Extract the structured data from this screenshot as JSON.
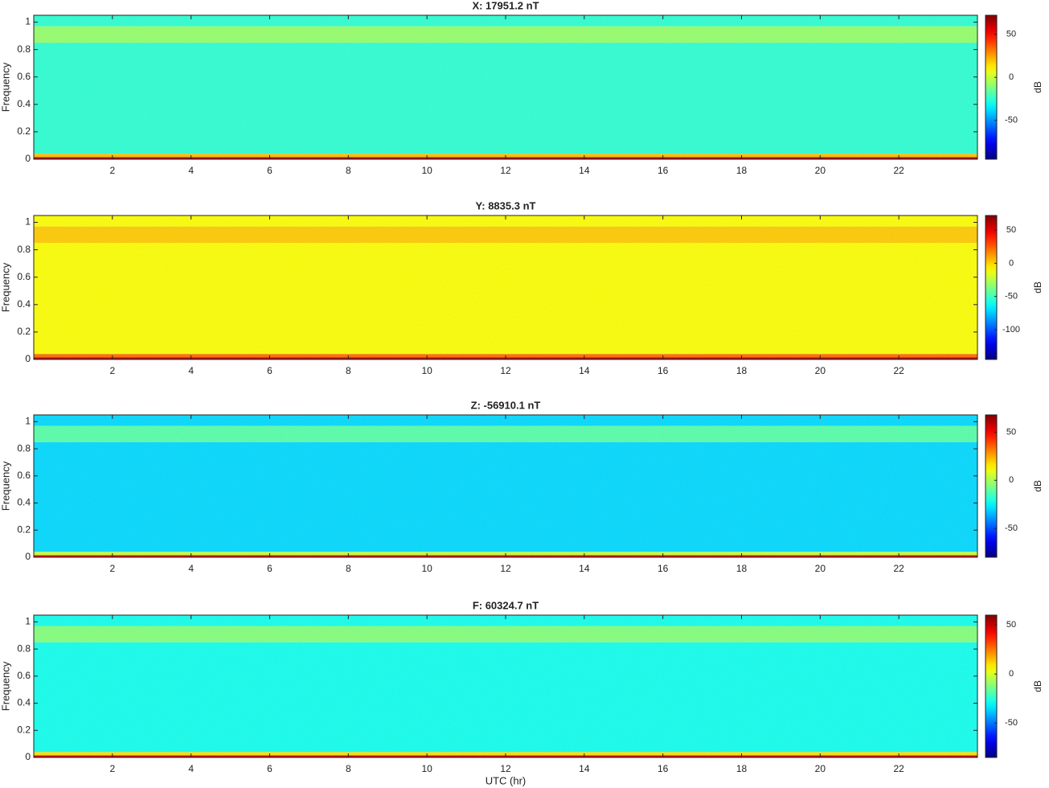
{
  "chart_data": [
    {
      "type": "heatmap",
      "title": "X: 17951.2 nT",
      "ylabel": "Frequency",
      "colorbar_label": "dB",
      "xlim": [
        0,
        24
      ],
      "xticks": [
        2,
        4,
        6,
        8,
        10,
        12,
        14,
        16,
        18,
        20,
        22
      ],
      "ylim": [
        0,
        1.05
      ],
      "yticks": [
        0,
        0.2,
        0.4,
        0.6,
        0.8,
        1
      ],
      "clim": [
        -95,
        72
      ],
      "cticks": [
        -50,
        0,
        50
      ],
      "colormap": "jet",
      "ybins": [
        0,
        0.015,
        0.04,
        0.85,
        0.97,
        1.05
      ],
      "values": [
        65,
        20,
        -25,
        -8,
        -25
      ]
    },
    {
      "type": "heatmap",
      "title": "Y: 8835.3 nT",
      "ylabel": "Frequency",
      "colorbar_label": "dB",
      "xlim": [
        0,
        24
      ],
      "xticks": [
        2,
        4,
        6,
        8,
        10,
        12,
        14,
        16,
        18,
        20,
        22
      ],
      "ylim": [
        0,
        1.05
      ],
      "yticks": [
        0,
        0.2,
        0.4,
        0.6,
        0.8,
        1
      ],
      "clim": [
        -145,
        72
      ],
      "cticks": [
        -100,
        -50,
        0,
        50
      ],
      "colormap": "jet",
      "ybins": [
        0,
        0.015,
        0.04,
        0.85,
        0.97,
        1.05
      ],
      "values": [
        62,
        22,
        -10,
        2,
        -10
      ]
    },
    {
      "type": "heatmap",
      "title": "Z: -56910.1 nT",
      "ylabel": "Frequency",
      "colorbar_label": "dB",
      "xlim": [
        0,
        24
      ],
      "xticks": [
        2,
        4,
        6,
        8,
        10,
        12,
        14,
        16,
        18,
        20,
        22
      ],
      "ylim": [
        0,
        1.05
      ],
      "yticks": [
        0,
        0.2,
        0.4,
        0.6,
        0.8,
        1
      ],
      "clim": [
        -80,
        68
      ],
      "cticks": [
        -50,
        0,
        50
      ],
      "colormap": "jet",
      "ybins": [
        0,
        0.015,
        0.04,
        0.85,
        0.97,
        1.05
      ],
      "values": [
        55,
        5,
        -30,
        -12,
        -30
      ]
    },
    {
      "type": "heatmap",
      "title": "F: 60324.7 nT",
      "ylabel": "Frequency",
      "xlabel": "UTC (hr)",
      "colorbar_label": "dB",
      "xlim": [
        0,
        24
      ],
      "xticks": [
        2,
        4,
        6,
        8,
        10,
        12,
        14,
        16,
        18,
        20,
        22
      ],
      "ylim": [
        0,
        1.05
      ],
      "yticks": [
        0,
        0.2,
        0.4,
        0.6,
        0.8,
        1
      ],
      "clim": [
        -85,
        60
      ],
      "cticks": [
        -50,
        0,
        50
      ],
      "colormap": "jet",
      "ybins": [
        0,
        0.015,
        0.04,
        0.85,
        0.97,
        1.05
      ],
      "values": [
        50,
        10,
        -28,
        -12,
        -28
      ]
    }
  ]
}
